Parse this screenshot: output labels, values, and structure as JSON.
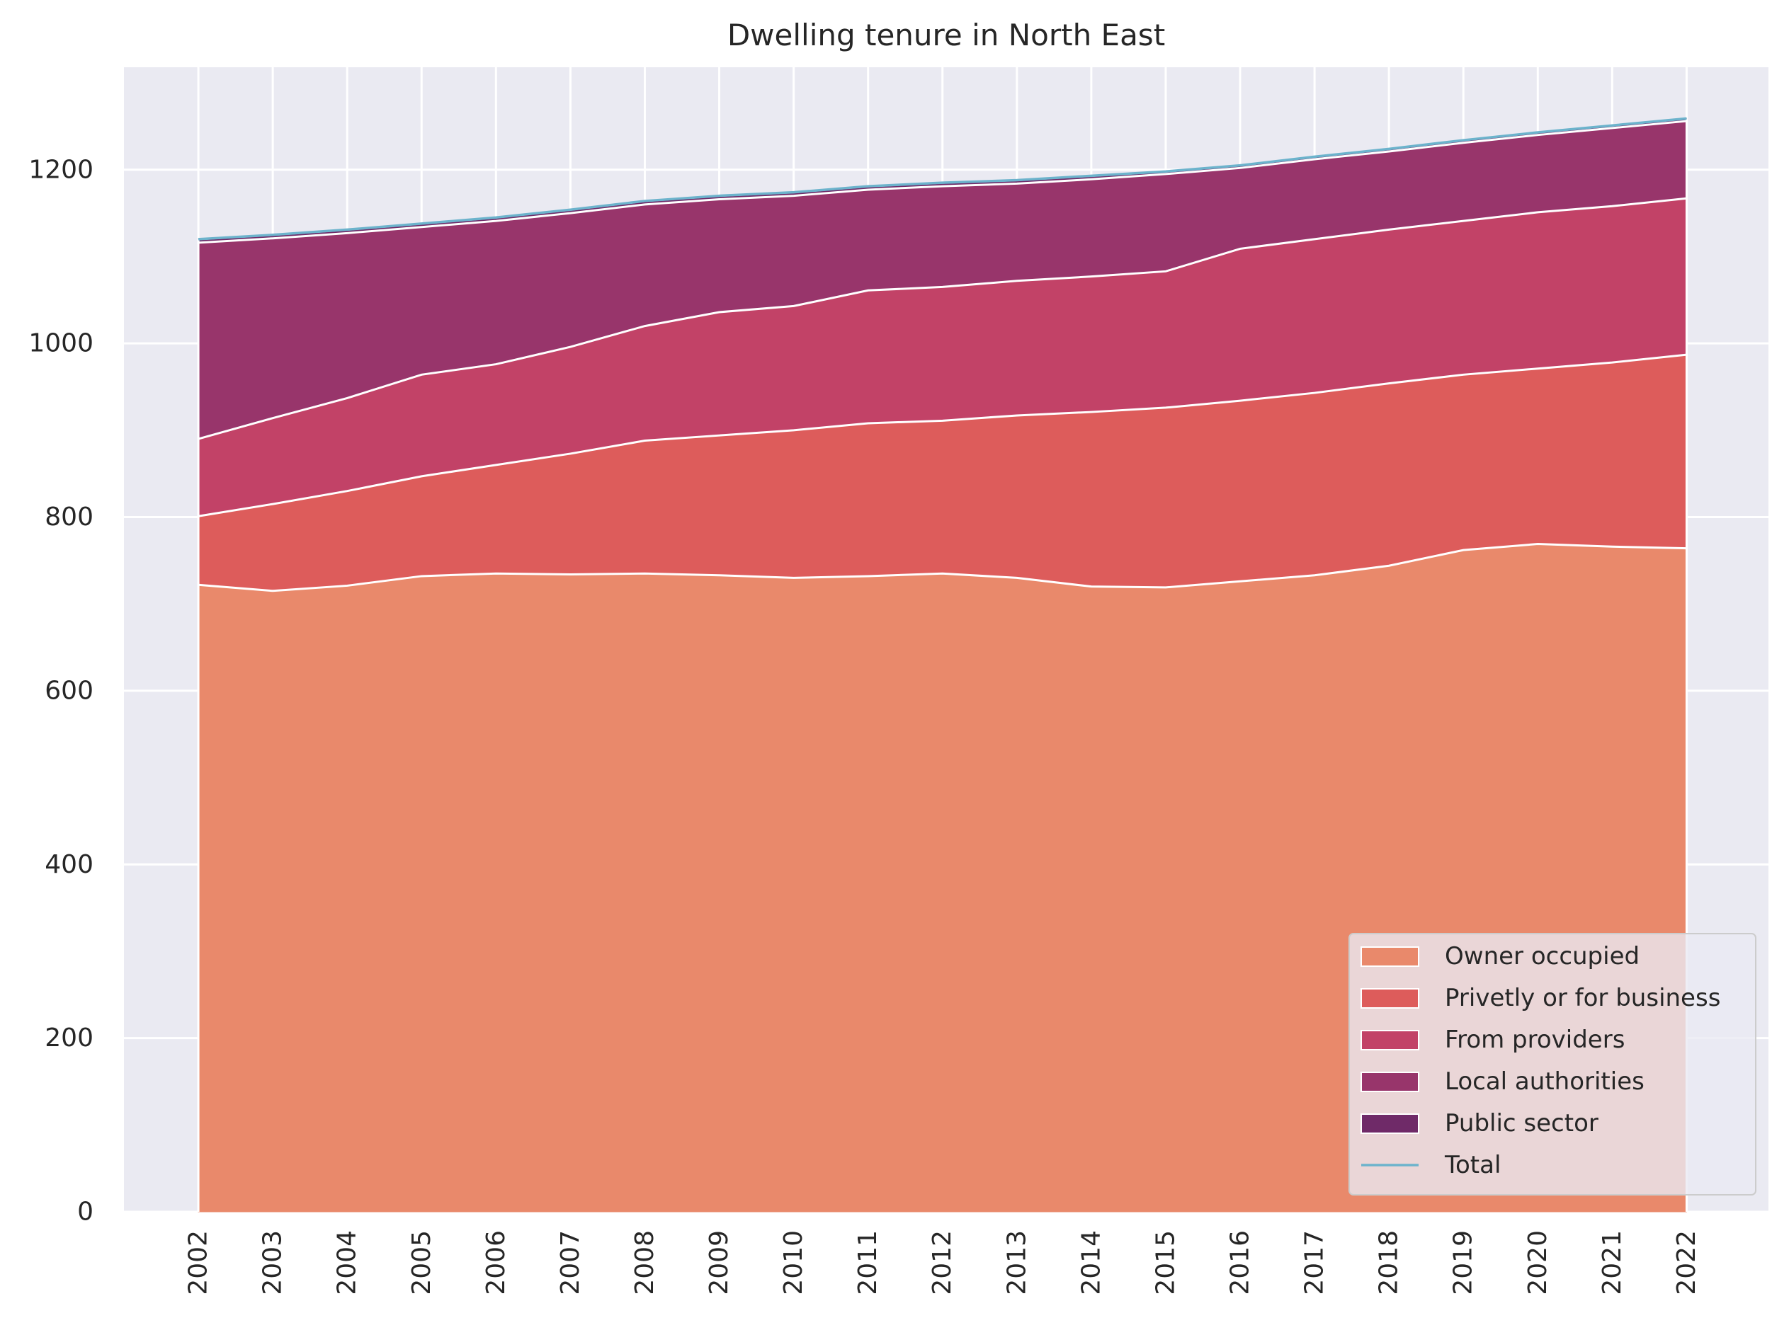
{
  "chart_data": {
    "type": "area",
    "stacked": true,
    "title": "Dwelling tenure in North East",
    "xlabel": "",
    "ylabel": "",
    "x": [
      2002,
      2003,
      2004,
      2005,
      2006,
      2007,
      2008,
      2009,
      2010,
      2011,
      2012,
      2013,
      2014,
      2015,
      2016,
      2017,
      2018,
      2019,
      2020,
      2021,
      2022
    ],
    "x_tick_labels": [
      "2002",
      "2003",
      "2004",
      "2005",
      "2006",
      "2007",
      "2008",
      "2009",
      "2010",
      "2011",
      "2012",
      "2013",
      "2014",
      "2015",
      "2016",
      "2017",
      "2018",
      "2019",
      "2020",
      "2021",
      "2022"
    ],
    "y_ticks": [
      0,
      200,
      400,
      600,
      800,
      1000,
      1200
    ],
    "y_tick_labels": [
      "0",
      "200",
      "400",
      "600",
      "800",
      "1000",
      "1200"
    ],
    "xlim": [
      2001,
      2023.1
    ],
    "ylim": [
      0,
      1318
    ],
    "grid": true,
    "legend_position": "lower-right",
    "series": [
      {
        "name": "Owner occupied",
        "color": "#e9896b",
        "values": [
          722,
          715,
          721,
          732,
          735,
          734,
          735,
          733,
          730,
          732,
          735,
          730,
          720,
          719,
          726,
          733,
          744,
          762,
          769,
          766,
          764
        ]
      },
      {
        "name": "Privetly or for business",
        "color": "#dd5c5b",
        "values": [
          79,
          100,
          109,
          115,
          125,
          139,
          153,
          161,
          170,
          176,
          176,
          187,
          201,
          207,
          208,
          210,
          210,
          202,
          202,
          212,
          223
        ]
      },
      {
        "name": "From providers",
        "color": "#c24267",
        "values": [
          89,
          99,
          107,
          117,
          116,
          123,
          132,
          142,
          143,
          153,
          154,
          155,
          156,
          157,
          175,
          177,
          177,
          177,
          180,
          180,
          180
        ]
      },
      {
        "name": "Local authorities",
        "color": "#98356b",
        "values": [
          226,
          207,
          190,
          170,
          165,
          154,
          140,
          130,
          127,
          116,
          116,
          112,
          112,
          112,
          93,
          92,
          90,
          90,
          89,
          90,
          89
        ]
      },
      {
        "name": "Public sector",
        "color": "#6f2a68",
        "values": [
          4,
          4,
          4,
          4,
          4,
          4,
          4,
          4,
          4,
          4,
          4,
          4,
          4,
          3,
          3,
          3,
          3,
          3,
          3,
          3,
          3
        ]
      }
    ],
    "total": {
      "name": "Total",
      "color": "#6cb3cc",
      "values": [
        1120,
        1125,
        1131,
        1138,
        1145,
        1154,
        1164,
        1170,
        1174,
        1181,
        1185,
        1188,
        1193,
        1198,
        1205,
        1215,
        1224,
        1234,
        1243,
        1251,
        1259
      ]
    }
  }
}
